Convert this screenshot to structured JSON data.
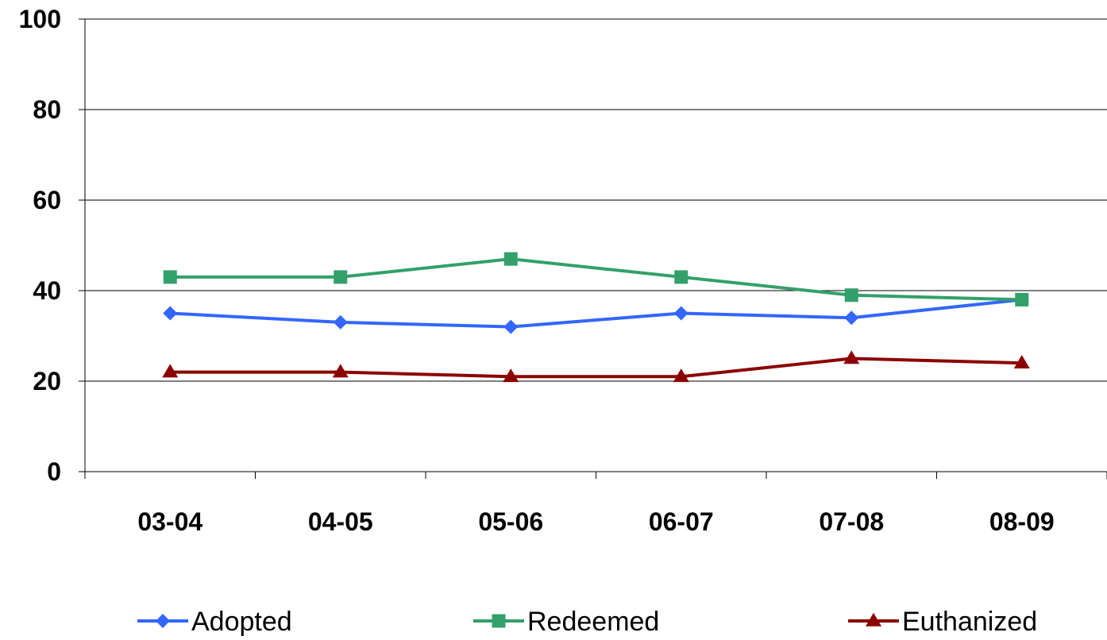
{
  "chart_data": {
    "type": "line",
    "title": "",
    "xlabel": "",
    "ylabel": "",
    "categories": [
      "03-04",
      "04-05",
      "05-06",
      "06-07",
      "07-08",
      "08-09"
    ],
    "ylim": [
      0,
      100
    ],
    "yticks": [
      0,
      20,
      40,
      60,
      80,
      100
    ],
    "grid": true,
    "legend_position": "bottom",
    "series": [
      {
        "name": "Adopted",
        "values": [
          35,
          33,
          32,
          35,
          34,
          38
        ],
        "color": "#3366ff",
        "marker": "diamond"
      },
      {
        "name": "Redeemed",
        "values": [
          43,
          43,
          47,
          43,
          39,
          38
        ],
        "color": "#33a06b",
        "marker": "square"
      },
      {
        "name": "Euthanized",
        "values": [
          22,
          22,
          21,
          21,
          25,
          24
        ],
        "color": "#8b0000",
        "marker": "triangle"
      }
    ]
  }
}
